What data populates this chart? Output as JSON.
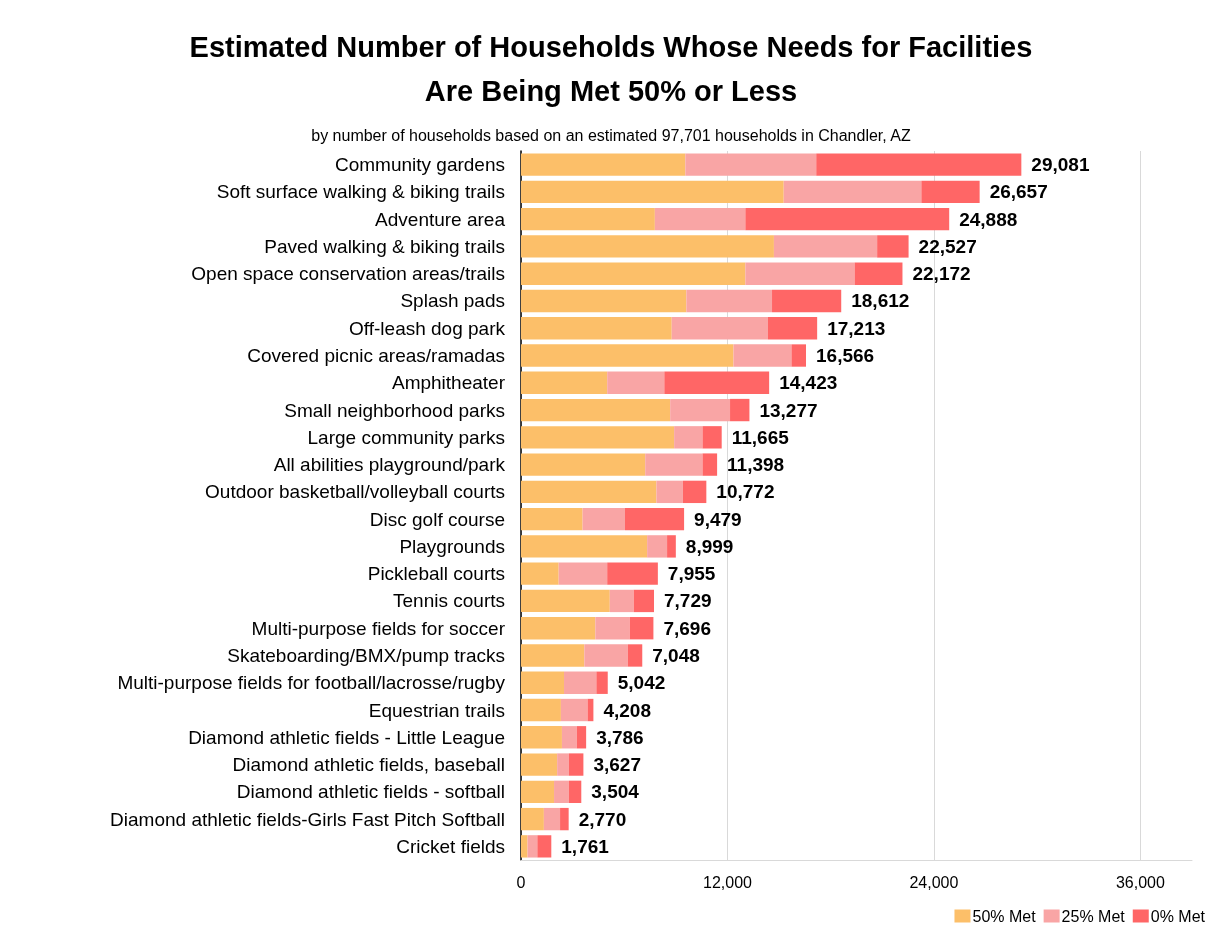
{
  "chart_data": {
    "type": "bar",
    "orientation": "horizontal",
    "stacked": true,
    "title": "Estimated Number of Households Whose Needs for Facilities\nAre Being Met 50% or Less",
    "subtitle": "by number of households based on an estimated 97,701 households in Chandler, AZ",
    "categories": [
      "Community gardens",
      "Soft surface walking & biking trails",
      "Adventure area",
      "Paved walking & biking trails",
      "Open space conservation areas/trails",
      "Splash pads",
      "Off-leash dog park",
      "Covered picnic areas/ramadas",
      "Amphitheater",
      "Small neighborhood parks",
      "Large community parks",
      "All abilities playground/park",
      "Outdoor basketball/volleyball courts",
      "Disc golf course",
      "Playgrounds",
      "Pickleball courts",
      "Tennis courts",
      "Multi-purpose fields for soccer",
      "Skateboarding/BMX/pump tracks",
      "Multi-purpose fields for football/lacrosse/rugby",
      "Equestrian trails",
      "Diamond athletic fields - Little League",
      "Diamond athletic fields, baseball",
      "Diamond athletic fields - softball",
      "Diamond athletic fields-Girls Fast Pitch Softball",
      "Cricket fields"
    ],
    "series": [
      {
        "name": "50% Met",
        "color": "#fcbf69",
        "values": [
          9550,
          15270,
          7780,
          14700,
          13040,
          9610,
          8760,
          12350,
          5010,
          8670,
          8900,
          7220,
          7870,
          3580,
          7330,
          2190,
          5160,
          4320,
          3680,
          2500,
          2320,
          2380,
          2100,
          1920,
          1330,
          380
        ]
      },
      {
        "name": "25% Met",
        "color": "#f9a5a5",
        "values": [
          7610,
          8000,
          5260,
          6000,
          6350,
          4980,
          5590,
          3370,
          3320,
          3480,
          1650,
          3330,
          1540,
          2460,
          1160,
          2820,
          1390,
          2000,
          2530,
          1880,
          1550,
          860,
          680,
          860,
          940,
          570
        ]
      },
      {
        "name": "0% Met",
        "color": "#ff6666",
        "values": [
          11921,
          3387,
          11848,
          1827,
          2782,
          4022,
          2863,
          846,
          6093,
          1127,
          1115,
          848,
          1362,
          3439,
          509,
          2945,
          1179,
          1376,
          838,
          662,
          338,
          546,
          847,
          724,
          500,
          811
        ]
      }
    ],
    "totals": [
      "29,081",
      "26,657",
      "24,888",
      "22,527",
      "22,172",
      "18,612",
      "17,213",
      "16,566",
      "14,423",
      "13,277",
      "11,665",
      "11,398",
      "10,772",
      "9,479",
      "8,999",
      "7,955",
      "7,729",
      "7,696",
      "7,048",
      "5,042",
      "4,208",
      "3,786",
      "3,627",
      "3,504",
      "2,770",
      "1,761"
    ],
    "xlim": [
      0,
      39000
    ],
    "xticks": [
      0,
      {
        "value": 12000,
        "label": "12,000"
      },
      {
        "value": 24000,
        "label": "24,000"
      },
      {
        "value": 36000,
        "label": "36,000"
      }
    ],
    "grid": "x",
    "legend": "bottom right"
  }
}
